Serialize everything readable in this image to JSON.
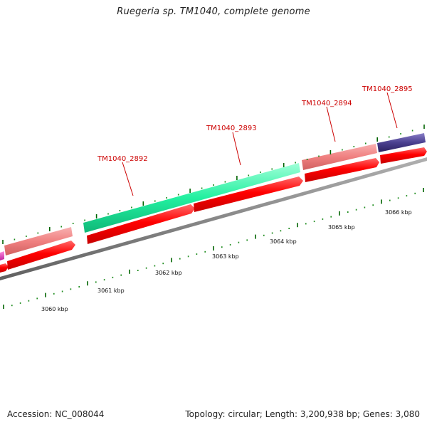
{
  "map": {
    "title": "Ruegeria sp. TM1040, complete genome"
  },
  "footer": {
    "accession": "Accession: NC_008044",
    "stats": "Topology: circular; Length: 3,200,938 bp; Genes: 3,080"
  },
  "genes": [
    {
      "id": "TM1040_2892",
      "label": "TM1040_2892"
    },
    {
      "id": "TM1040_2893",
      "label": "TM1040_2893"
    },
    {
      "id": "TM1040_2894",
      "label": "TM1040_2894"
    },
    {
      "id": "TM1040_2895",
      "label": "TM1040_2895"
    }
  ],
  "scale_labels": [
    "3060 kbp",
    "3061 kbp",
    "3062 kbp",
    "3063 kbp",
    "3064 kbp",
    "3065 kbp",
    "3066 kbp"
  ],
  "colors": {
    "label_red": "#cc0000",
    "leader_line": "#cc0000",
    "backbone": "#808080",
    "tick_green": "#1a8a1a",
    "tick_dark_green": "#006400",
    "cds_red": "#ff0000",
    "feature_pink": "#f08080",
    "feature_green": "#22f0a0",
    "feature_navy": "#4a3f8f",
    "feature_magenta": "#e040c0"
  }
}
